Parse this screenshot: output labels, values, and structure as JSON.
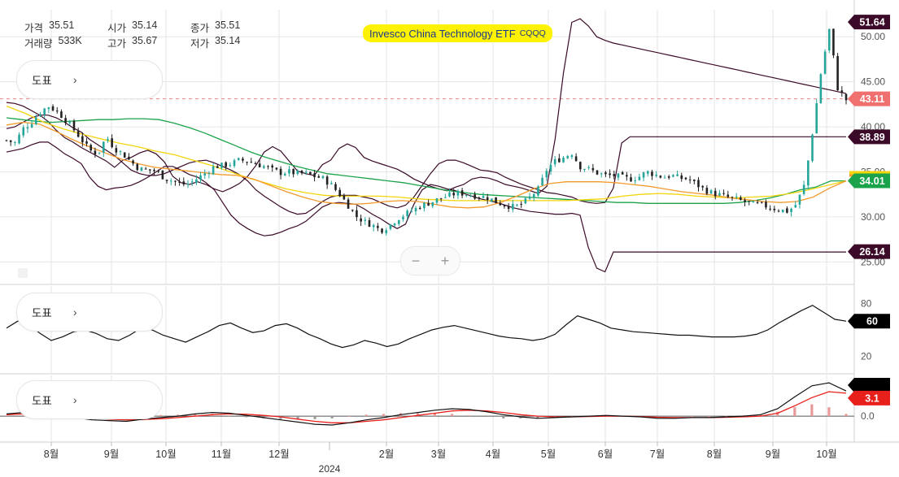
{
  "legend": {
    "price_label": "가격",
    "price_value": "35.51",
    "open_label": "시가",
    "open_value": "35.14",
    "close_label": "종가",
    "close_value": "35.51",
    "volume_label": "거래량",
    "volume_value": "533K",
    "high_label": "고가",
    "high_value": "35.67",
    "low_label": "저가",
    "low_value": "35.14"
  },
  "title": {
    "name": "Invesco China Technology ETF",
    "ticker": "CQQQ"
  },
  "panel_buttons": {
    "label": "도표",
    "chevron": "›"
  },
  "zoom": {
    "minus": "−",
    "plus": "+"
  },
  "colors": {
    "up": "#26a69a",
    "down": "#222222",
    "bollinger": "#3b0a28",
    "ma_green": "#1aa34a",
    "ma_yellow": "#f4d40a",
    "ma_orange": "#f39a2b",
    "ref_line": "#f08080",
    "signal": "#e8201c",
    "grid": "#e6e6e6",
    "badge_dark": "#3b0a28",
    "badge_green": "#1aa34a",
    "badge_red": "#f07070",
    "badge_yellow": "#f4d40a"
  },
  "chart_data": [
    {
      "type": "candlestick",
      "title": "Invesco China Technology ETF CQQQ",
      "x_labels": [
        "8월",
        "9월",
        "10월",
        "11월",
        "12월",
        "2024",
        "2월",
        "3월",
        "4월",
        "5월",
        "6월",
        "7월",
        "8월",
        "9월",
        "10월"
      ],
      "year_label": "2024",
      "ylim": [
        22.5,
        53
      ],
      "yticks": [
        "25.00",
        "30.00",
        "35.00",
        "40.00",
        "45.00",
        "50.00"
      ],
      "price_path": [
        38.5,
        38.2,
        39.8,
        40.5,
        41.6,
        42.3,
        41.8,
        40.9,
        39.8,
        38.6,
        37.4,
        37.0,
        38.9,
        37.6,
        37.0,
        36.1,
        35.3,
        35.2,
        35.1,
        34.3,
        34.0,
        33.6,
        33.7,
        34.3,
        34.9,
        35.6,
        35.7,
        35.9,
        36.3,
        36.2,
        35.9,
        35.6,
        35.2,
        34.9,
        35.0,
        34.8,
        34.8,
        34.5,
        34.3,
        33.6,
        32.6,
        31.4,
        30.1,
        29.5,
        29.1,
        28.5,
        29.0,
        29.8,
        30.3,
        30.8,
        31.3,
        31.6,
        32.0,
        32.3,
        32.6,
        32.6,
        32.4,
        32.3,
        32.1,
        31.6,
        31.3,
        31.1,
        31.4,
        32.2,
        33.1,
        35.3,
        36.2,
        36.6,
        37.1,
        35.6,
        35.3,
        34.9,
        34.6,
        34.6,
        34.4,
        34.2,
        34.4,
        35.0,
        34.7,
        34.4,
        34.6,
        34.3,
        34.2,
        33.6,
        33.0,
        32.6,
        32.4,
        32.1,
        31.9,
        31.6,
        31.4,
        31.3,
        31.0,
        30.8,
        30.6,
        31.4,
        33.6,
        39.7,
        46.2,
        50.9,
        44.2,
        43.0
      ],
      "series": [
        {
          "name": "BB upper",
          "values": [
            42.7,
            42.6,
            42.3,
            41.8,
            41.3,
            40.6,
            39.6,
            38.8,
            38.3,
            37.7,
            37.2,
            36.7,
            36.2,
            35.5,
            36.3,
            36.6,
            37.1,
            37.4,
            37.0,
            36.1,
            34.5,
            33.8,
            33.6,
            33.9,
            33.6,
            33.1,
            32.8,
            33.2,
            33.7,
            34.5,
            35.7,
            37.2,
            37.8,
            37.3,
            36.2,
            35.1,
            34.8,
            34.6,
            35.8,
            36.3,
            37.6,
            38.1,
            37.7,
            36.6,
            36.2,
            35.9,
            35.6,
            35.3,
            34.8,
            34.2,
            33.8,
            33.4,
            33.1,
            32.9,
            33.3,
            33.6,
            34.2,
            34.4,
            34.3,
            34.0,
            33.6,
            33.4,
            33.2,
            32.9,
            32.6,
            33.4,
            38.7,
            46.0,
            51.6,
            52.0,
            51.2,
            50.0,
            49.6,
            49.3,
            49.1,
            48.9,
            48.7,
            48.5,
            48.3,
            48.1,
            47.9,
            47.7,
            47.5,
            47.3,
            47.1,
            46.9,
            46.7,
            46.5,
            46.3,
            46.1,
            45.9,
            45.7,
            45.5,
            45.3,
            45.1,
            44.9,
            44.7,
            44.5,
            44.3,
            44.1,
            43.9,
            43.7
          ]
        },
        {
          "name": "BB middle",
          "values": [
            39.8,
            40.0,
            40.5,
            41.0,
            41.3,
            41.3,
            41.0,
            40.5,
            39.9,
            39.4,
            38.6,
            38.0,
            37.4,
            36.8,
            36.0,
            35.2,
            34.8,
            34.6,
            34.6,
            34.8,
            35.2,
            35.6,
            36.0,
            36.2,
            36.3,
            36.0,
            35.6,
            35.2,
            34.7,
            34.0,
            33.0,
            32.3,
            31.7,
            31.1,
            30.6,
            30.3,
            30.4,
            31.0,
            31.7,
            32.2,
            32.4,
            32.4,
            32.4,
            32.2,
            32.0,
            31.6,
            31.2,
            31.0,
            31.3,
            32.2,
            33.5,
            34.8,
            35.9,
            36.3,
            36.3,
            36.0,
            35.6,
            35.2,
            35.1,
            34.9,
            34.4,
            34.0,
            33.6,
            33.3,
            33.0,
            32.7,
            32.6,
            32.4,
            32.2,
            31.8,
            31.6,
            31.5,
            31.6,
            33.2,
            38.2,
            38.9,
            38.9,
            38.9,
            38.9,
            38.9,
            38.9,
            38.9,
            38.9,
            38.9,
            38.9,
            38.9,
            38.9,
            38.9,
            38.9,
            38.9,
            38.9,
            38.9,
            38.9,
            38.9,
            38.9,
            38.9,
            38.9,
            38.9,
            38.9,
            38.9,
            38.9,
            38.9
          ]
        },
        {
          "name": "BB lower",
          "values": [
            37.2,
            37.4,
            37.6,
            38.0,
            38.3,
            38.3,
            37.7,
            37.0,
            36.5,
            35.9,
            34.4,
            33.4,
            33.0,
            33.2,
            33.3,
            33.5,
            33.9,
            34.4,
            35.0,
            35.6,
            35.6,
            35.2,
            34.7,
            34.4,
            33.8,
            33.0,
            31.6,
            30.2,
            29.3,
            28.7,
            28.2,
            27.9,
            28.0,
            28.3,
            28.7,
            29.0,
            29.5,
            30.3,
            31.1,
            31.5,
            31.6,
            31.5,
            31.4,
            30.9,
            30.3,
            29.8,
            29.2,
            28.7,
            29.2,
            31.4,
            33.0,
            33.6,
            33.4,
            33.1,
            32.9,
            32.6,
            32.3,
            32.0,
            31.8,
            31.6,
            31.3,
            31.0,
            30.8,
            30.6,
            30.5,
            30.4,
            30.3,
            30.3,
            30.4,
            30.2,
            26.6,
            24.3,
            23.9,
            26.1,
            26.1,
            26.1,
            26.1,
            26.1,
            26.1,
            26.1,
            26.1,
            26.1,
            26.1,
            26.1,
            26.1,
            26.1,
            26.1,
            26.1,
            26.1,
            26.1,
            26.1,
            26.1,
            26.1,
            26.1,
            26.1,
            26.1,
            26.1,
            26.1,
            26.1,
            26.1,
            26.1,
            26.1
          ]
        },
        {
          "name": "MA green",
          "values": [
            41.0,
            40.8,
            40.6,
            40.5,
            40.6,
            40.7,
            40.8,
            40.8,
            40.9,
            40.9,
            40.8,
            40.4,
            39.9,
            39.3,
            38.6,
            37.9,
            37.2,
            36.6,
            36.1,
            35.6,
            35.2,
            34.8,
            34.6,
            34.4,
            34.2,
            34.0,
            33.8,
            33.5,
            33.2,
            32.9,
            32.7,
            32.5,
            32.4,
            32.3,
            32.2,
            32.1,
            32.0,
            31.9,
            31.8,
            31.7,
            31.6,
            31.6,
            31.5,
            31.5,
            31.5,
            31.5,
            31.5,
            31.5,
            31.6,
            31.8,
            32.1,
            32.5,
            33.0,
            33.3,
            34.0,
            34.0
          ]
        },
        {
          "name": "MA yellow",
          "values": [
            42.3,
            41.5,
            40.5,
            39.8,
            39.2,
            38.7,
            38.2,
            37.8,
            37.3,
            36.9,
            36.3,
            35.7,
            35.0,
            34.3,
            33.7,
            33.1,
            32.7,
            32.4,
            32.3,
            32.3,
            32.3,
            32.2,
            32.0,
            31.9,
            31.8,
            31.8,
            31.8,
            31.8,
            31.8,
            31.8,
            31.8,
            31.9,
            32.0,
            32.3,
            32.5,
            32.6,
            32.5,
            32.3,
            32.2,
            32.1,
            32.2,
            32.3,
            32.6,
            33.0,
            33.5,
            34.0
          ]
        },
        {
          "name": "MA orange",
          "values": [
            40.2,
            40.5,
            40.3,
            39.5,
            38.6,
            37.8,
            37.1,
            36.4,
            35.9,
            35.5,
            35.3,
            35.1,
            34.9,
            34.7,
            34.6,
            34.2,
            33.5,
            32.8,
            32.2,
            31.7,
            31.5,
            31.4,
            31.5,
            31.7,
            31.8,
            31.7,
            31.4,
            31.1,
            31.0,
            31.1,
            31.6,
            32.3,
            33.1,
            33.7,
            33.9,
            33.9,
            33.9,
            33.8,
            33.6,
            33.4,
            33.1,
            32.8,
            32.6,
            32.4,
            32.1,
            31.9,
            31.7,
            31.6,
            31.7,
            32.2,
            33.2,
            34.0
          ]
        }
      ],
      "reference_line": 43.11,
      "price_badges": [
        "51.64",
        "43.11",
        "38.89",
        "34.01",
        "26.14"
      ]
    },
    {
      "type": "line",
      "name": "oscillator",
      "ylim": [
        0,
        100
      ],
      "yticks": [
        "80",
        "20"
      ],
      "last_value": "60",
      "values": [
        52,
        60,
        56,
        46,
        38,
        42,
        48,
        50,
        46,
        40,
        38,
        44,
        52,
        50,
        44,
        40,
        36,
        42,
        48,
        55,
        58,
        52,
        47,
        49,
        55,
        57,
        52,
        45,
        40,
        34,
        30,
        33,
        38,
        35,
        31,
        34,
        40,
        45,
        50,
        53,
        55,
        52,
        49,
        46,
        43,
        41,
        40,
        38,
        40,
        45,
        56,
        66,
        62,
        58,
        52,
        50,
        48,
        47,
        46,
        45,
        44,
        44,
        43,
        42,
        42,
        42,
        43,
        45,
        50,
        58,
        65,
        72,
        78,
        70,
        62,
        60
      ]
    },
    {
      "type": "line",
      "name": "MACD",
      "yticks": [
        "0.0"
      ],
      "ylim": [
        -3.5,
        5.5
      ],
      "last_value": "3.1",
      "macd": [
        0.3,
        0.5,
        0.4,
        0.2,
        -0.2,
        -0.5,
        -0.6,
        -0.7,
        -0.4,
        -0.2,
        0.0,
        0.3,
        0.5,
        0.4,
        0.1,
        -0.2,
        -0.5,
        -0.8,
        -1.1,
        -1.2,
        -0.9,
        -0.5,
        -0.2,
        0.2,
        0.5,
        0.8,
        1.0,
        0.9,
        0.6,
        0.2,
        -0.1,
        -0.3,
        -0.2,
        -0.1,
        0.0,
        0.1,
        0.0,
        -0.1,
        -0.3,
        -0.3,
        -0.2,
        -0.2,
        -0.1,
        0.0,
        0.2,
        1.0,
        2.6,
        4.1,
        4.5,
        3.4
      ],
      "signal": [
        0.2,
        0.3,
        0.35,
        0.3,
        0.1,
        -0.2,
        -0.4,
        -0.5,
        -0.45,
        -0.35,
        -0.2,
        0.0,
        0.2,
        0.3,
        0.25,
        0.1,
        -0.1,
        -0.4,
        -0.7,
        -0.9,
        -0.9,
        -0.7,
        -0.5,
        -0.2,
        0.1,
        0.4,
        0.7,
        0.8,
        0.7,
        0.5,
        0.2,
        0.0,
        -0.1,
        -0.1,
        -0.05,
        0.0,
        0.0,
        -0.05,
        -0.15,
        -0.2,
        -0.2,
        -0.2,
        -0.15,
        -0.1,
        0.0,
        0.4,
        1.4,
        2.5,
        3.3,
        3.1
      ]
    }
  ]
}
